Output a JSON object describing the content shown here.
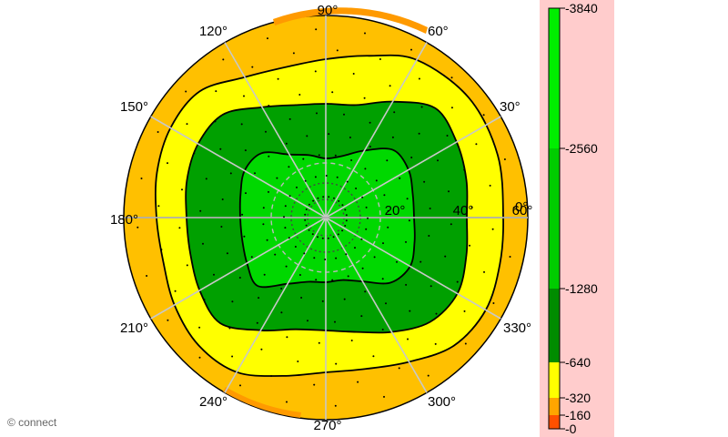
{
  "chart_data": {
    "type": "polar-contour",
    "title": "",
    "angle_labels": [
      "0°",
      "30°",
      "60°",
      "90°",
      "120°",
      "150°",
      "180°",
      "210°",
      "240°",
      "270°",
      "300°",
      "330°"
    ],
    "radial_labels": [
      "20°",
      "40°",
      "60°"
    ],
    "radial_max": 60,
    "levels": [
      {
        "label": "-0",
        "value": 0,
        "color": "#ff5000"
      },
      {
        "label": "-160",
        "value": 160,
        "color": "#ffa500"
      },
      {
        "label": "-320",
        "value": 320,
        "color": "#ffff00"
      },
      {
        "label": "-640",
        "value": 640,
        "color": "#008c00"
      },
      {
        "label": "-1280",
        "value": 1280,
        "color": "#00cc00"
      },
      {
        "label": "-2560",
        "value": 2560,
        "color": "#00ee00"
      },
      {
        "label": "-3840",
        "value": 3840,
        "color": "#00ff90"
      }
    ],
    "regions": [
      {
        "name": "outer",
        "color": "#ffc000"
      },
      {
        "name": "yellow",
        "color": "#ffff00"
      },
      {
        "name": "dark-green",
        "color": "#00a000"
      },
      {
        "name": "green",
        "color": "#00d800"
      },
      {
        "name": "bright-green",
        "color": "#00ee00"
      }
    ],
    "legend_background": "#ffcccc",
    "watermark": "© connect"
  }
}
